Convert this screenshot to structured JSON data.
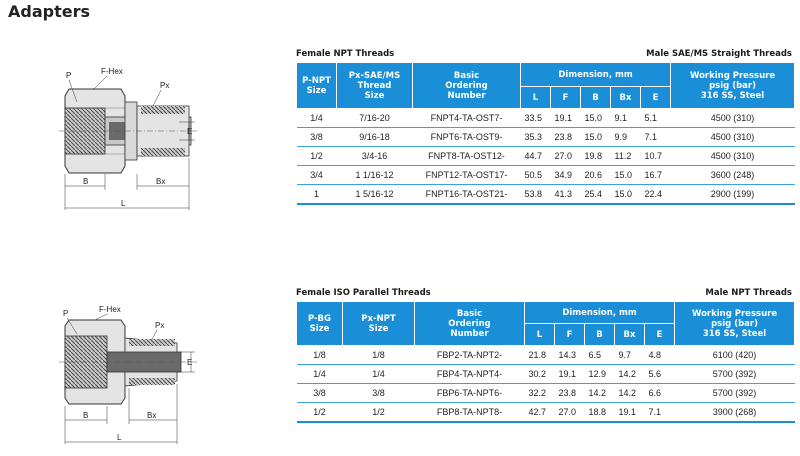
{
  "page_title": "Adapters",
  "diagram_labels": {
    "p": "P",
    "fhex": "F-Hex",
    "px": "Px",
    "e": "E",
    "b": "B",
    "bx": "Bx",
    "l": "L"
  },
  "table1": {
    "left_heading": "Female NPT  Threads",
    "right_heading": "Male SAE/MS Straight Threads",
    "col_size_1": [
      "P-NPT",
      "Size"
    ],
    "col_size_2": [
      "Px-SAE/MS",
      "Thread",
      "Size"
    ],
    "col_order": [
      "Basic",
      "Ordering",
      "Number"
    ],
    "col_dim": "Dimension, mm",
    "dim_cols": [
      "L",
      "F",
      "B",
      "Bx",
      "E"
    ],
    "col_pressure": [
      "Working Pressure",
      "psig (bar)",
      "316 SS, Steel"
    ],
    "rows": [
      {
        "p": "1/4",
        "px": "7/16-20",
        "order": "FNPT4-TA-OST7-",
        "l": "33.5",
        "f": "19.1",
        "b": "15.0",
        "bx": "9.1",
        "e": "5.1",
        "pressure": "4500 (310)"
      },
      {
        "p": "3/8",
        "px": "9/16-18",
        "order": "FNPT6-TA-OST9-",
        "l": "35.3",
        "f": "23.8",
        "b": "15.0",
        "bx": "9.9",
        "e": "7.1",
        "pressure": "4500 (310)"
      },
      {
        "p": "1/2",
        "px": "3/4-16",
        "order": "FNPT8-TA-OST12-",
        "l": "44.7",
        "f": "27.0",
        "b": "19.8",
        "bx": "11.2",
        "e": "10.7",
        "pressure": "4500 (310)"
      },
      {
        "p": "3/4",
        "px": "1 1/16-12",
        "order": "FNPT12-TA-OST17-",
        "l": "50.5",
        "f": "34.9",
        "b": "20.6",
        "bx": "15.0",
        "e": "16.7",
        "pressure": "3600 (248)"
      },
      {
        "p": "1",
        "px": "1 5/16-12",
        "order": "FNPT16-TA-OST21-",
        "l": "53.8",
        "f": "41.3",
        "b": "25.4",
        "bx": "15.0",
        "e": "22.4",
        "pressure": "2900 (199)"
      }
    ]
  },
  "table2": {
    "left_heading": "Female ISO Parallel Threads",
    "right_heading": "Male NPT Threads",
    "col_size_1": [
      "P-BG",
      "Size"
    ],
    "col_size_2": [
      "Px-NPT",
      "Size"
    ],
    "col_order": [
      "Basic",
      "Ordering",
      "Number"
    ],
    "col_dim": "Dimension, mm",
    "dim_cols": [
      "L",
      "F",
      "B",
      "Bx",
      "E"
    ],
    "col_pressure": [
      "Working Pressure",
      "psig (bar)",
      "316 SS, Steel"
    ],
    "rows": [
      {
        "p": "1/8",
        "px": "1/8",
        "order": "FBP2-TA-NPT2-",
        "l": "21.8",
        "f": "14.3",
        "b": "6.5",
        "bx": "9.7",
        "e": "4.8",
        "pressure": "6100 (420)"
      },
      {
        "p": "1/4",
        "px": "1/4",
        "order": "FBP4-TA-NPT4-",
        "l": "30.2",
        "f": "19.1",
        "b": "12.9",
        "bx": "14.2",
        "e": "5.6",
        "pressure": "5700 (392)"
      },
      {
        "p": "3/8",
        "px": "3/8",
        "order": "FBP6-TA-NPT6-",
        "l": "32.2",
        "f": "23.8",
        "b": "14.2",
        "bx": "14.2",
        "e": "6.6",
        "pressure": "5700 (392)"
      },
      {
        "p": "1/2",
        "px": "1/2",
        "order": "FBP8-TA-NPT8-",
        "l": "42.7",
        "f": "27.0",
        "b": "18.8",
        "bx": "19.1",
        "e": "7.1",
        "pressure": "3900 (268)"
      }
    ]
  }
}
